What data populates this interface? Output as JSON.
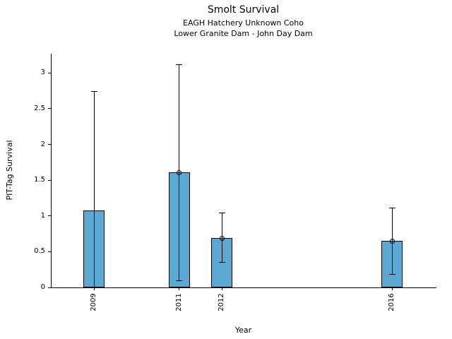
{
  "header": {
    "title": "Smolt Survival",
    "subtitle1": "EAGH Hatchery Unknown Coho",
    "subtitle2": "Lower Granite Dam - John Day Dam"
  },
  "axes": {
    "xlabel": "Year",
    "ylabel": "PIT-Tag Survival",
    "ytick_labels": [
      "0",
      "0.5",
      "1",
      "1.5",
      "2",
      "2.5",
      "3"
    ],
    "xtick_labels": [
      "2009",
      "2011",
      "2012",
      "2016"
    ]
  },
  "chart_data": {
    "type": "bar",
    "title": "Smolt Survival",
    "subtitle": [
      "EAGH Hatchery Unknown Coho",
      "Lower Granite Dam - John Day Dam"
    ],
    "xlabel": "Year",
    "ylabel": "PIT-Tag Survival",
    "x": [
      2009,
      2011,
      2012,
      2016
    ],
    "values": [
      1.08,
      1.61,
      0.69,
      0.65
    ],
    "error_high": [
      2.74,
      3.12,
      1.04,
      1.11
    ],
    "error_low": [
      0,
      0.09,
      0.35,
      0.18
    ],
    "error_low_cap_visible": [
      false,
      true,
      true,
      true
    ],
    "point_marker_visible": [
      false,
      true,
      true,
      true
    ],
    "yticks": [
      0,
      0.5,
      1,
      1.5,
      2,
      2.5,
      3
    ],
    "xlim": [
      2008,
      2017.04
    ],
    "ylim": [
      0,
      3.27
    ],
    "grid": false,
    "legend": null,
    "bar_color": "#5BA8D2",
    "bar_edge_color": "#000000",
    "error_color": "#000000"
  }
}
